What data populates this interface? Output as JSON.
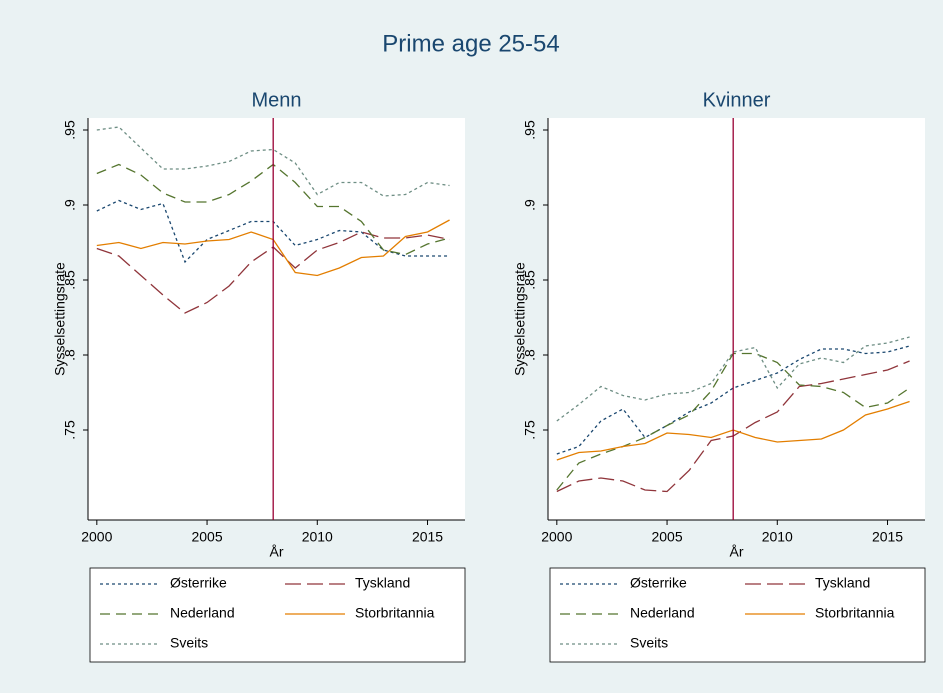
{
  "title": "Prime age 25-54",
  "chart_data": [
    {
      "type": "line",
      "title": "Menn",
      "ylabel": "Sysselsettingsrate",
      "xlabel": "År",
      "x": [
        2000,
        2001,
        2002,
        2003,
        2004,
        2005,
        2006,
        2007,
        2008,
        2009,
        2010,
        2011,
        2012,
        2013,
        2014,
        2015,
        2016
      ],
      "xlim": [
        1999.6,
        2016.7
      ],
      "xticks": [
        2000,
        2005,
        2010,
        2015
      ],
      "ylim": [
        0.69,
        0.958
      ],
      "yticks": [
        {
          "value": 0.75,
          "label": ".75"
        },
        {
          "value": 0.8,
          "label": ".8"
        },
        {
          "value": 0.85,
          "label": ".85"
        },
        {
          "value": 0.9,
          "label": ".9"
        },
        {
          "value": 0.95,
          "label": ".95"
        }
      ],
      "vline": 2008,
      "vline_color": "#990033",
      "series": [
        {
          "name": "Østerrike",
          "color": "#1a476f",
          "linestyle": "shortdash",
          "values": [
            0.896,
            0.903,
            0.897,
            0.901,
            0.862,
            0.877,
            0.883,
            0.889,
            0.889,
            0.873,
            0.877,
            0.883,
            0.882,
            0.87,
            0.866,
            0.866,
            0.866
          ]
        },
        {
          "name": "Tyskland",
          "color": "#90353b",
          "linestyle": "longdash",
          "values": [
            0.871,
            0.866,
            0.853,
            0.84,
            0.828,
            0.835,
            0.846,
            0.862,
            0.872,
            0.858,
            0.87,
            0.875,
            0.882,
            0.878,
            0.878,
            0.88,
            0.877
          ]
        },
        {
          "name": "Nederland",
          "color": "#55752f",
          "linestyle": "dash",
          "values": [
            0.921,
            0.927,
            0.92,
            0.908,
            0.902,
            0.902,
            0.907,
            0.916,
            0.927,
            0.915,
            0.899,
            0.899,
            0.889,
            0.87,
            0.867,
            0.874,
            0.878
          ]
        },
        {
          "name": "Storbritannia",
          "color": "#e37e00",
          "linestyle": "solid",
          "values": [
            0.873,
            0.875,
            0.871,
            0.875,
            0.874,
            0.876,
            0.877,
            0.882,
            0.877,
            0.855,
            0.853,
            0.858,
            0.865,
            0.866,
            0.879,
            0.882,
            0.89
          ]
        },
        {
          "name": "Sveits",
          "color": "#6e8e84",
          "linestyle": "shortdash",
          "values": [
            0.95,
            0.952,
            0.938,
            0.924,
            0.924,
            0.926,
            0.929,
            0.936,
            0.937,
            0.928,
            0.907,
            0.915,
            0.915,
            0.906,
            0.907,
            0.915,
            0.913
          ]
        }
      ]
    },
    {
      "type": "line",
      "title": "Kvinner",
      "ylabel": "Sysselsettingsrate",
      "xlabel": "År",
      "x": [
        2000,
        2001,
        2002,
        2003,
        2004,
        2005,
        2006,
        2007,
        2008,
        2009,
        2010,
        2011,
        2012,
        2013,
        2014,
        2015,
        2016
      ],
      "xlim": [
        1999.6,
        2016.7
      ],
      "xticks": [
        2000,
        2005,
        2010,
        2015
      ],
      "ylim": [
        0.69,
        0.958
      ],
      "yticks": [
        {
          "value": 0.75,
          "label": ".75"
        },
        {
          "value": 0.8,
          "label": ".8"
        },
        {
          "value": 0.85,
          "label": ".85"
        },
        {
          "value": 0.9,
          "label": ".9"
        },
        {
          "value": 0.95,
          "label": ".95"
        }
      ],
      "vline": 2008,
      "vline_color": "#990033",
      "series": [
        {
          "name": "Østerrike",
          "color": "#1a476f",
          "linestyle": "shortdash",
          "values": [
            0.734,
            0.739,
            0.756,
            0.764,
            0.745,
            0.753,
            0.762,
            0.768,
            0.778,
            0.783,
            0.788,
            0.797,
            0.804,
            0.804,
            0.801,
            0.802,
            0.806
          ]
        },
        {
          "name": "Tyskland",
          "color": "#90353b",
          "linestyle": "longdash",
          "values": [
            0.709,
            0.716,
            0.718,
            0.716,
            0.71,
            0.709,
            0.723,
            0.743,
            0.746,
            0.755,
            0.762,
            0.779,
            0.781,
            0.784,
            0.787,
            0.79,
            0.796
          ]
        },
        {
          "name": "Nederland",
          "color": "#55752f",
          "linestyle": "dash",
          "values": [
            0.71,
            0.728,
            0.734,
            0.739,
            0.745,
            0.753,
            0.76,
            0.776,
            0.801,
            0.801,
            0.795,
            0.78,
            0.779,
            0.775,
            0.765,
            0.768,
            0.778
          ]
        },
        {
          "name": "Storbritannia",
          "color": "#e37e00",
          "linestyle": "solid",
          "values": [
            0.73,
            0.735,
            0.736,
            0.739,
            0.741,
            0.748,
            0.747,
            0.745,
            0.75,
            0.745,
            0.742,
            0.743,
            0.744,
            0.75,
            0.76,
            0.764,
            0.769
          ]
        },
        {
          "name": "Sveits",
          "color": "#6e8e84",
          "linestyle": "shortdash",
          "values": [
            0.756,
            0.767,
            0.779,
            0.773,
            0.77,
            0.774,
            0.775,
            0.781,
            0.802,
            0.805,
            0.778,
            0.794,
            0.798,
            0.795,
            0.806,
            0.808,
            0.812
          ]
        }
      ]
    }
  ]
}
